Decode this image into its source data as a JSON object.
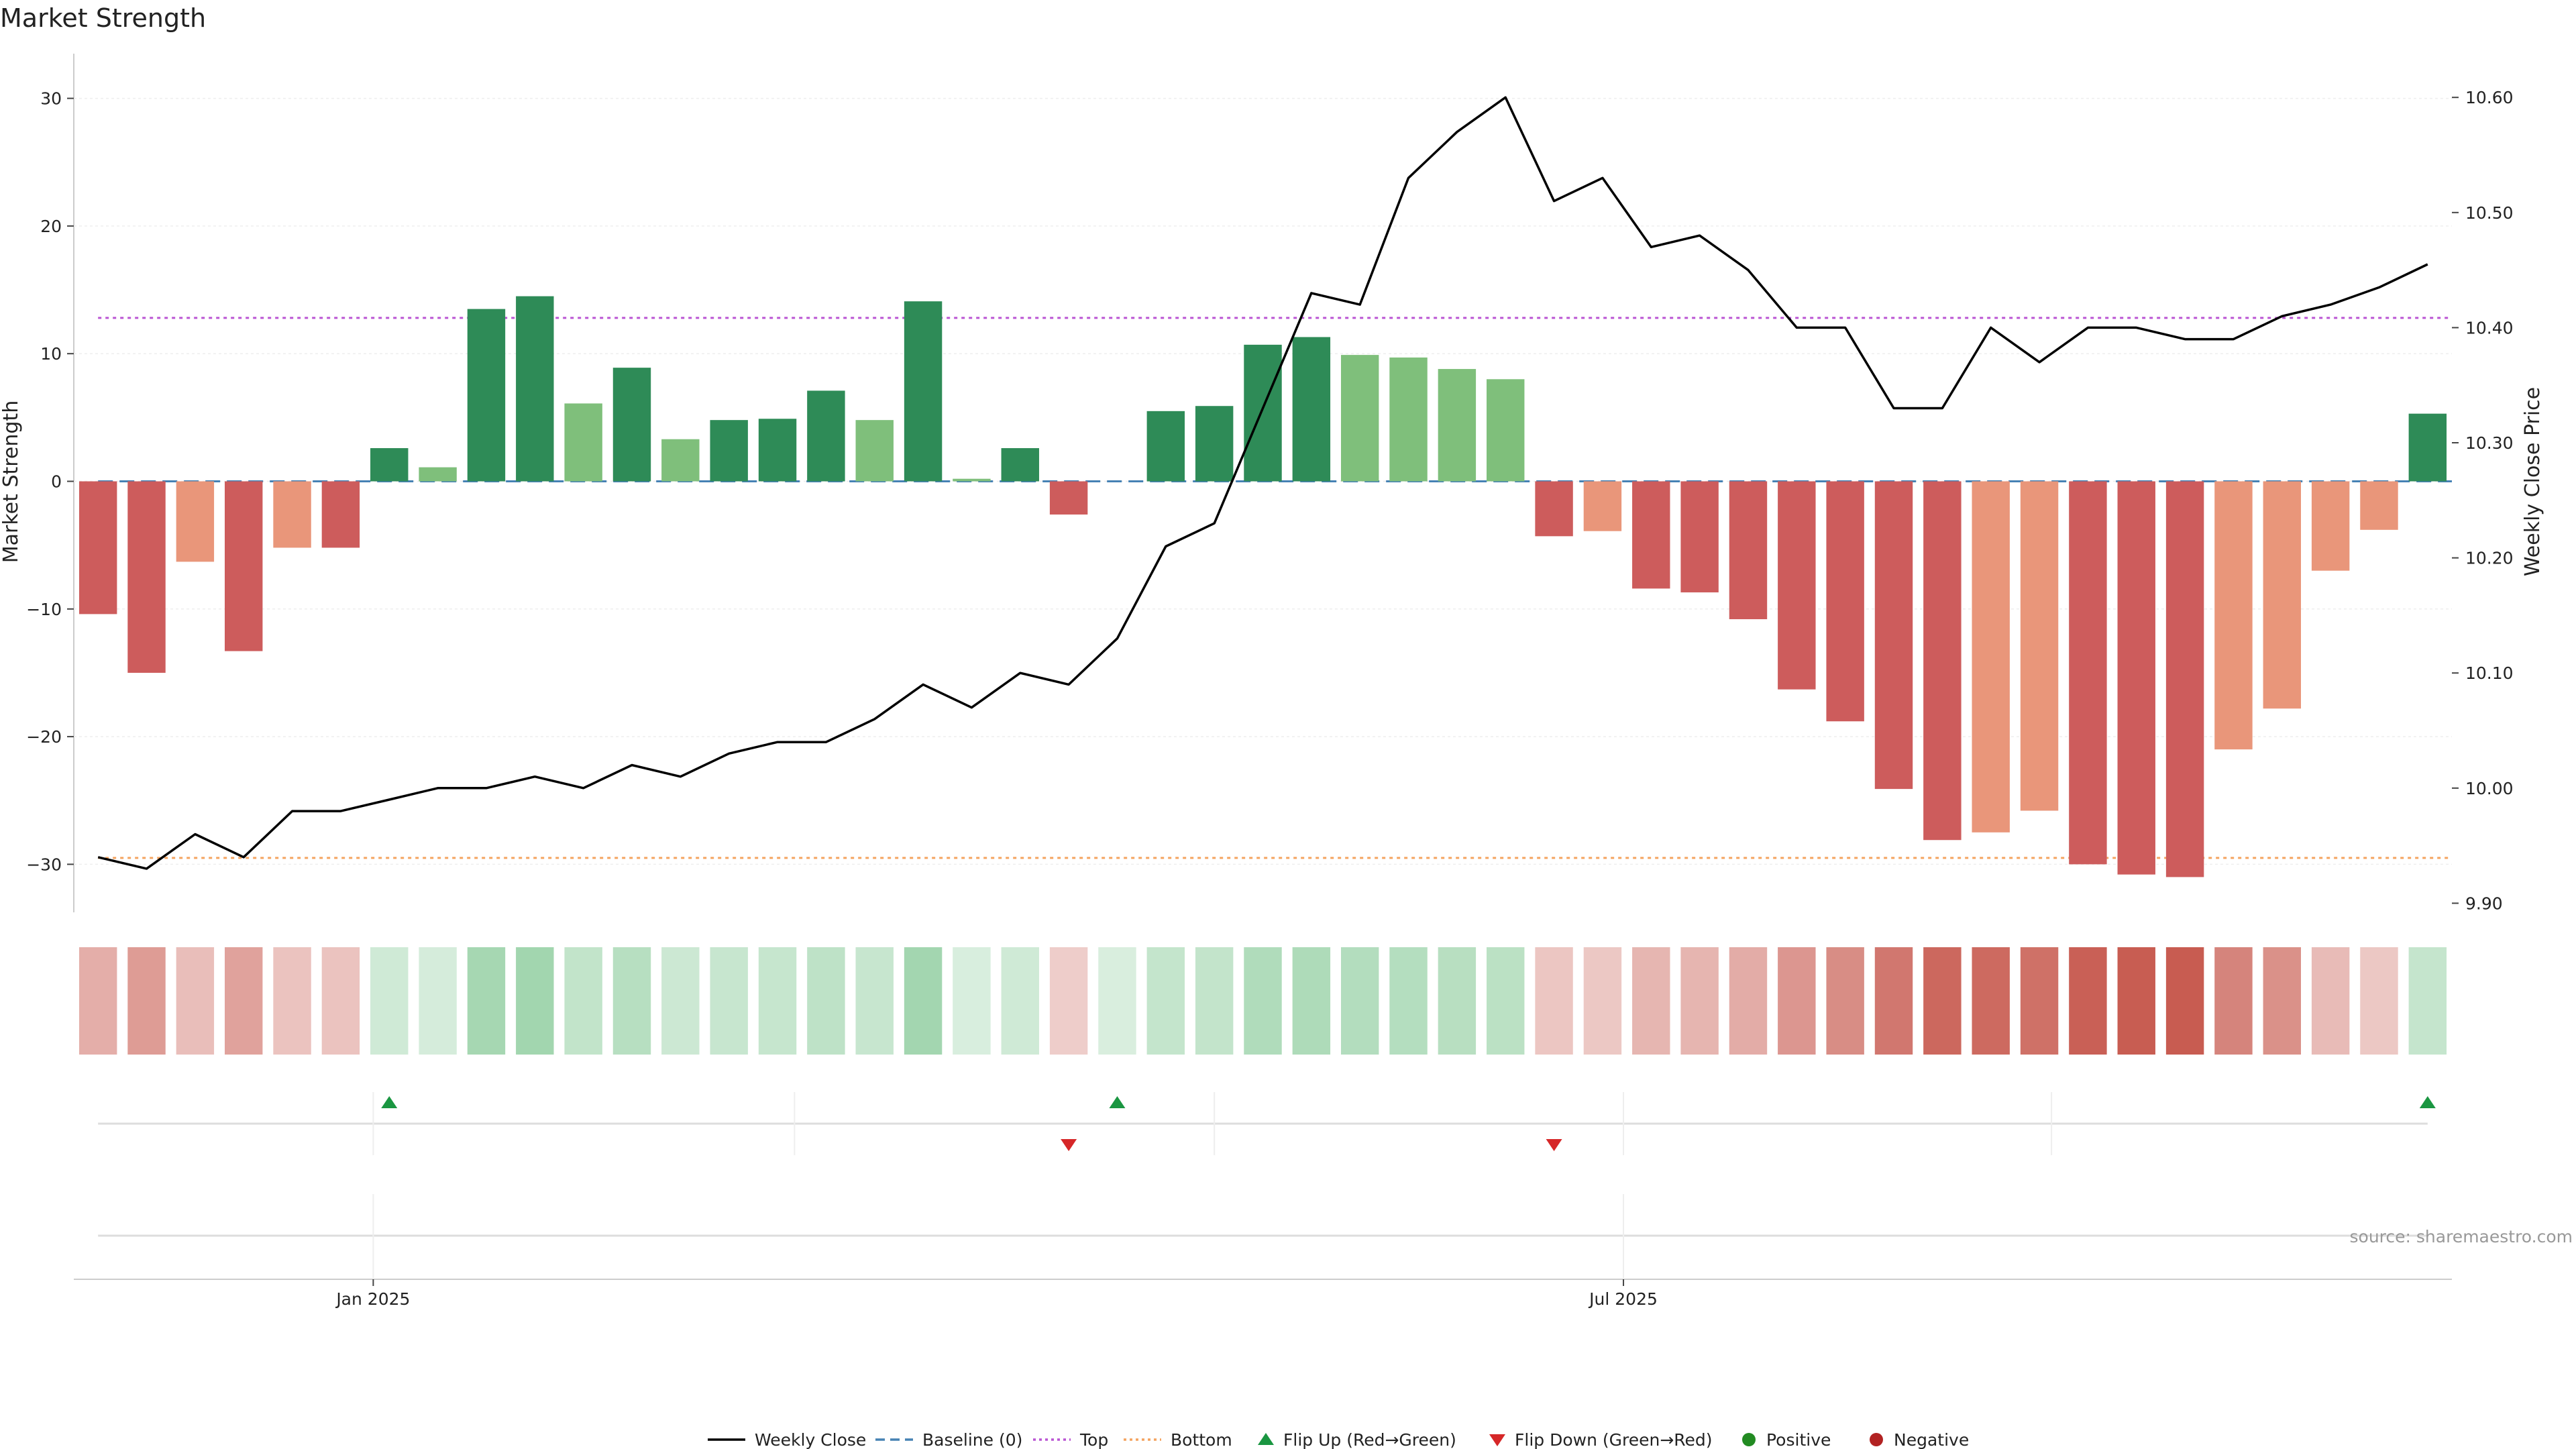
{
  "chart_data": {
    "type": "bar",
    "title": "Market Strength",
    "ylabel": "Market Strength",
    "y2label": "Weekly Close Price",
    "ylim": [
      -33.5,
      33.5
    ],
    "y2lim": [
      9.895,
      10.638
    ],
    "yticks": [
      30,
      20,
      10,
      0,
      -10,
      -20,
      -30
    ],
    "ytick_labels": [
      "30",
      "20",
      "10",
      "0",
      "−10",
      "−20",
      "−30"
    ],
    "y2ticks": [
      10.6,
      10.5,
      10.4,
      10.3,
      10.2,
      10.1,
      10.0,
      9.9
    ],
    "y2tick_labels": [
      "10.60",
      "10.50",
      "10.40",
      "10.30",
      "10.20",
      "10.10",
      "10.00",
      "9.90"
    ],
    "xtick_labels": [
      "Jan 2025",
      "Jul 2025"
    ],
    "xtick_index": [
      5.67,
      31.43
    ],
    "top_line": 12.8,
    "bottom_line": -29.5,
    "baseline": 0,
    "strength": [
      -10.4,
      -15.0,
      -6.3,
      -13.3,
      -5.2,
      -5.2,
      2.6,
      1.1,
      13.5,
      14.5,
      6.1,
      8.9,
      3.3,
      4.8,
      4.9,
      7.1,
      4.8,
      14.1,
      0.2,
      2.6,
      -2.6,
      0,
      5.5,
      5.9,
      10.7,
      11.3,
      9.9,
      9.7,
      8.8,
      8.0,
      -4.3,
      -3.9,
      -8.4,
      -8.7,
      -10.8,
      -16.3,
      -18.8,
      -24.1,
      -28.1,
      -27.5,
      -25.8,
      -30.0,
      -30.8,
      -31.0,
      -21.0,
      -17.8,
      -7.0,
      -3.8,
      5.3
    ],
    "weekly_close": [
      9.94,
      9.93,
      9.96,
      9.94,
      9.98,
      9.98,
      9.99,
      10.0,
      10.0,
      10.01,
      10.0,
      10.02,
      10.01,
      10.03,
      10.04,
      10.04,
      10.06,
      10.09,
      10.07,
      10.1,
      10.09,
      10.13,
      10.21,
      10.23,
      10.33,
      10.43,
      10.42,
      10.53,
      10.57,
      10.6,
      10.51,
      10.53,
      10.47,
      10.48,
      10.45,
      10.4,
      10.4,
      10.33,
      10.33,
      10.4,
      10.37,
      10.4,
      10.4,
      10.39,
      10.39,
      10.41,
      10.42,
      10.435,
      10.455
    ],
    "flip_up_index": [
      6,
      21,
      48
    ],
    "flip_down_index": [
      20,
      30
    ],
    "legend": [
      "Weekly Close",
      "Baseline (0)",
      "Top",
      "Bottom",
      "Flip Up (Red→Green)",
      "Flip Down (Green→Red)",
      "Positive",
      "Negative"
    ],
    "legend_position": "bottom-center"
  },
  "source_text": "source: sharemaestro.com",
  "colors": {
    "strong_green": "#2e8b57",
    "light_green": "#7fbf7b",
    "strong_red": "#cd5c5c",
    "light_red": "#e9967a",
    "close_line": "#000000",
    "baseline": "#4682b4",
    "top": "#ba55d3",
    "bottom": "#f4a460",
    "flip_up": "#1a9641",
    "flip_down": "#d62728",
    "positive": "#228b22",
    "negative": "#b22222"
  }
}
